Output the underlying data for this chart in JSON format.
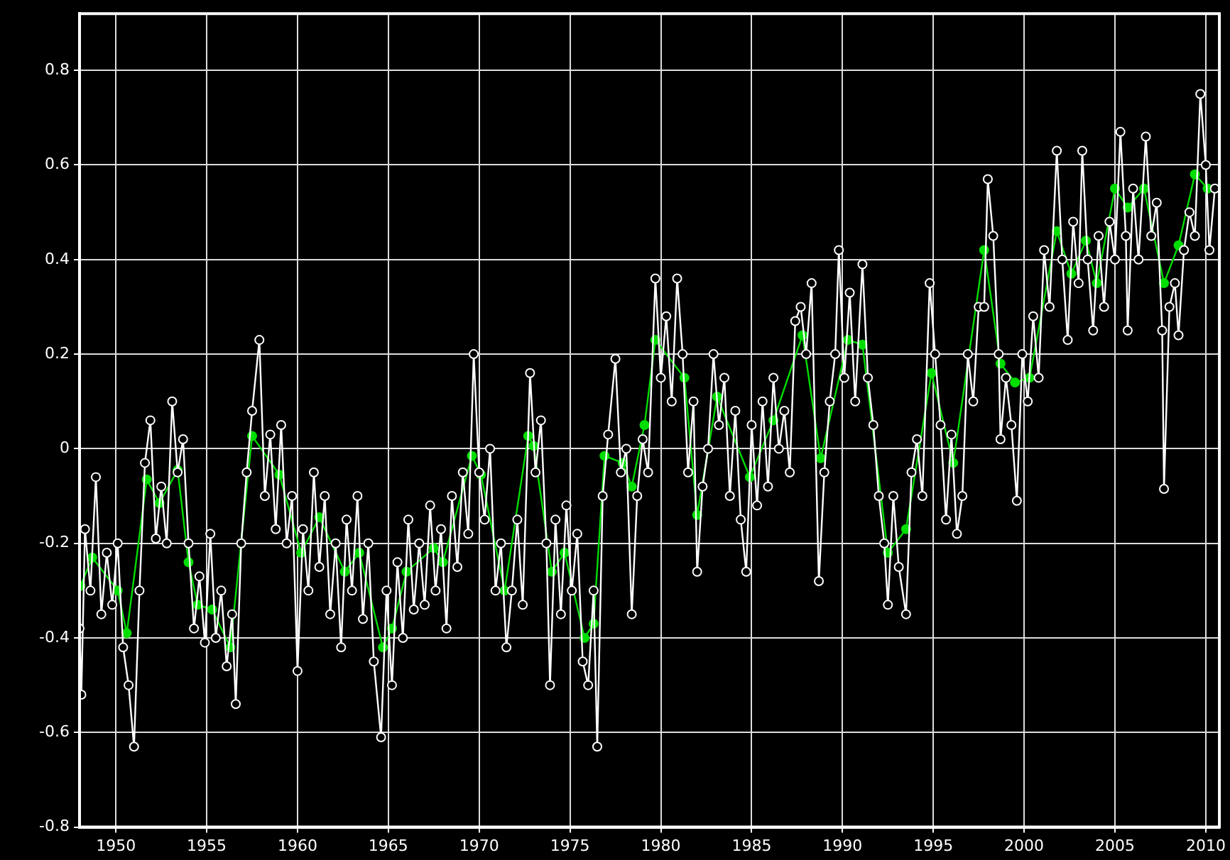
{
  "chart_data": {
    "type": "line",
    "xlim": [
      1948,
      2010.75
    ],
    "xticks": [
      1950,
      1955,
      1960,
      1965,
      1970,
      1975,
      1980,
      1985,
      1990,
      1995,
      2000,
      2005,
      2010
    ],
    "ylim": [
      -0.8,
      0.92
    ],
    "yticks": [
      -0.8,
      -0.6,
      -0.4,
      -0.2,
      0,
      0.2,
      0.4,
      0.6,
      0.8
    ],
    "grid": true,
    "legend": false,
    "marker": "circle",
    "series": [
      {
        "color": "#ffffff",
        "x": [
          1948.0,
          1948.1,
          1948.3,
          1948.6,
          1948.9,
          1949.2,
          1949.5,
          1949.8,
          1950.1,
          1950.4,
          1950.7,
          1951.0,
          1951.3,
          1951.6,
          1951.9,
          1952.2,
          1952.5,
          1952.8,
          1953.1,
          1953.4,
          1953.7,
          1954.0,
          1954.3,
          1954.6,
          1954.9,
          1955.2,
          1955.5,
          1955.8,
          1956.1,
          1956.4,
          1956.6,
          1956.9,
          1957.2,
          1957.5,
          1957.9,
          1958.2,
          1958.5,
          1958.8,
          1959.1,
          1959.4,
          1959.7,
          1960.0,
          1960.3,
          1960.6,
          1960.9,
          1961.2,
          1961.5,
          1961.8,
          1962.1,
          1962.4,
          1962.7,
          1963.0,
          1963.3,
          1963.6,
          1963.9,
          1964.2,
          1964.6,
          1964.9,
          1965.2,
          1965.5,
          1965.8,
          1966.1,
          1966.4,
          1966.7,
          1967.0,
          1967.3,
          1967.6,
          1967.9,
          1968.2,
          1968.5,
          1968.8,
          1969.1,
          1969.4,
          1969.7,
          1970.0,
          1970.3,
          1970.6,
          1970.9,
          1971.2,
          1971.5,
          1971.8,
          1972.1,
          1972.4,
          1972.8,
          1973.1,
          1973.4,
          1973.7,
          1973.9,
          1974.2,
          1974.5,
          1974.8,
          1975.1,
          1975.4,
          1975.7,
          1976.0,
          1976.3,
          1976.5,
          1976.8,
          1977.1,
          1977.5,
          1977.8,
          1978.1,
          1978.4,
          1978.7,
          1979.0,
          1979.3,
          1979.7,
          1980.0,
          1980.3,
          1980.6,
          1980.9,
          1981.2,
          1981.5,
          1981.8,
          1982.0,
          1982.3,
          1982.6,
          1982.9,
          1983.2,
          1983.5,
          1983.8,
          1984.1,
          1984.4,
          1984.7,
          1985.0,
          1985.3,
          1985.6,
          1985.9,
          1986.2,
          1986.5,
          1986.8,
          1987.1,
          1987.4,
          1987.7,
          1988.0,
          1988.3,
          1988.7,
          1989.0,
          1989.3,
          1989.6,
          1989.8,
          1990.1,
          1990.4,
          1990.7,
          1991.1,
          1991.4,
          1991.7,
          1992.0,
          1992.3,
          1992.5,
          1992.8,
          1993.1,
          1993.5,
          1993.8,
          1994.1,
          1994.4,
          1994.8,
          1995.1,
          1995.4,
          1995.7,
          1996.0,
          1996.3,
          1996.6,
          1996.9,
          1997.2,
          1997.5,
          1997.8,
          1998.0,
          1998.3,
          1998.6,
          1998.7,
          1999.0,
          1999.3,
          1999.6,
          1999.9,
          2000.2,
          2000.5,
          2000.8,
          2001.1,
          2001.4,
          2001.8,
          2002.1,
          2002.4,
          2002.7,
          2003.0,
          2003.2,
          2003.5,
          2003.8,
          2004.1,
          2004.4,
          2004.7,
          2005.0,
          2005.3,
          2005.6,
          2005.7,
          2006.0,
          2006.3,
          2006.7,
          2007.0,
          2007.3,
          2007.6,
          2007.7,
          2008.0,
          2008.3,
          2008.5,
          2008.8,
          2009.1,
          2009.4,
          2009.7,
          2010.0,
          2010.2,
          2010.5
        ],
        "values": [
          -0.38,
          -0.52,
          -0.17,
          -0.3,
          -0.06,
          -0.35,
          -0.22,
          -0.33,
          -0.2,
          -0.42,
          -0.5,
          -0.63,
          -0.3,
          -0.03,
          0.06,
          -0.19,
          -0.08,
          -0.2,
          0.1,
          -0.05,
          0.02,
          -0.2,
          -0.38,
          -0.27,
          -0.41,
          -0.18,
          -0.4,
          -0.3,
          -0.46,
          -0.35,
          -0.54,
          -0.2,
          -0.05,
          0.08,
          0.23,
          -0.1,
          0.03,
          -0.17,
          0.05,
          -0.2,
          -0.1,
          -0.47,
          -0.17,
          -0.3,
          -0.05,
          -0.25,
          -0.1,
          -0.35,
          -0.2,
          -0.42,
          -0.15,
          -0.3,
          -0.1,
          -0.36,
          -0.2,
          -0.45,
          -0.61,
          -0.3,
          -0.5,
          -0.24,
          -0.4,
          -0.15,
          -0.34,
          -0.2,
          -0.33,
          -0.12,
          -0.3,
          -0.17,
          -0.38,
          -0.1,
          -0.25,
          -0.05,
          -0.18,
          0.2,
          -0.05,
          -0.15,
          0.0,
          -0.3,
          -0.2,
          -0.42,
          -0.3,
          -0.15,
          -0.33,
          0.16,
          -0.05,
          0.06,
          -0.2,
          -0.5,
          -0.15,
          -0.35,
          -0.12,
          -0.3,
          -0.18,
          -0.45,
          -0.5,
          -0.3,
          -0.63,
          -0.1,
          0.03,
          0.19,
          -0.05,
          0.0,
          -0.35,
          -0.1,
          0.02,
          -0.05,
          0.36,
          0.15,
          0.28,
          0.1,
          0.36,
          0.2,
          -0.05,
          0.1,
          -0.26,
          -0.08,
          0.0,
          0.2,
          0.05,
          0.15,
          -0.1,
          0.08,
          -0.15,
          -0.26,
          0.05,
          -0.12,
          0.1,
          -0.08,
          0.15,
          0.0,
          0.08,
          -0.05,
          0.27,
          0.3,
          0.2,
          0.35,
          -0.28,
          -0.05,
          0.1,
          0.2,
          0.42,
          0.15,
          0.33,
          0.1,
          0.39,
          0.15,
          0.05,
          -0.1,
          -0.2,
          -0.33,
          -0.1,
          -0.25,
          -0.35,
          -0.05,
          0.02,
          -0.1,
          0.35,
          0.2,
          0.05,
          -0.15,
          0.03,
          -0.18,
          -0.1,
          0.2,
          0.1,
          0.3,
          0.3,
          0.57,
          0.45,
          0.2,
          0.02,
          0.15,
          0.05,
          -0.11,
          0.2,
          0.1,
          0.28,
          0.15,
          0.42,
          0.3,
          0.63,
          0.4,
          0.23,
          0.48,
          0.35,
          0.63,
          0.4,
          0.25,
          0.45,
          0.3,
          0.48,
          0.4,
          0.67,
          0.45,
          0.25,
          0.55,
          0.4,
          0.66,
          0.45,
          0.52,
          0.25,
          -0.085,
          0.3,
          0.35,
          0.24,
          0.42,
          0.5,
          0.45,
          0.75,
          0.6,
          0.42,
          0.55
        ]
      },
      {
        "color": "#00dd00",
        "x": [
          1948.05,
          1948.7,
          1950.1,
          1950.6,
          1951.7,
          1952.4,
          1953.4,
          1954.0,
          1954.5,
          1955.3,
          1956.3,
          1957.5,
          1959.0,
          1960.2,
          1961.2,
          1962.6,
          1963.4,
          1964.7,
          1965.2,
          1966.0,
          1967.5,
          1968.0,
          1969.6,
          1970.1,
          1971.4,
          1972.7,
          1973.0,
          1974.0,
          1974.7,
          1975.8,
          1976.3,
          1976.9,
          1977.9,
          1978.4,
          1979.1,
          1979.7,
          1981.3,
          1982.0,
          1983.1,
          1984.9,
          1986.2,
          1987.8,
          1988.8,
          1990.3,
          1991.1,
          1992.5,
          1993.5,
          1994.9,
          1996.1,
          1997.8,
          1998.7,
          1999.5,
          2000.3,
          2001.8,
          2002.6,
          2003.4,
          2004.0,
          2005.0,
          2005.7,
          2006.6,
          2007.7,
          2008.5,
          2009.4,
          2010.1
        ],
        "values": [
          -0.29,
          -0.23,
          -0.3,
          -0.39,
          -0.065,
          -0.115,
          -0.045,
          -0.24,
          -0.33,
          -0.34,
          -0.42,
          0.027,
          -0.055,
          -0.22,
          -0.145,
          -0.26,
          -0.22,
          -0.42,
          -0.38,
          -0.26,
          -0.21,
          -0.24,
          -0.015,
          -0.055,
          -0.3,
          0.027,
          0.006,
          -0.26,
          -0.22,
          -0.4,
          -0.37,
          -0.015,
          -0.03,
          -0.08,
          0.05,
          0.23,
          0.15,
          -0.14,
          0.11,
          -0.06,
          0.06,
          0.24,
          -0.02,
          0.23,
          0.22,
          -0.22,
          -0.17,
          0.16,
          -0.03,
          0.42,
          0.18,
          0.14,
          0.15,
          0.46,
          0.37,
          0.44,
          0.35,
          0.55,
          0.51,
          0.55,
          0.35,
          0.43,
          0.58,
          0.55
        ]
      }
    ]
  }
}
